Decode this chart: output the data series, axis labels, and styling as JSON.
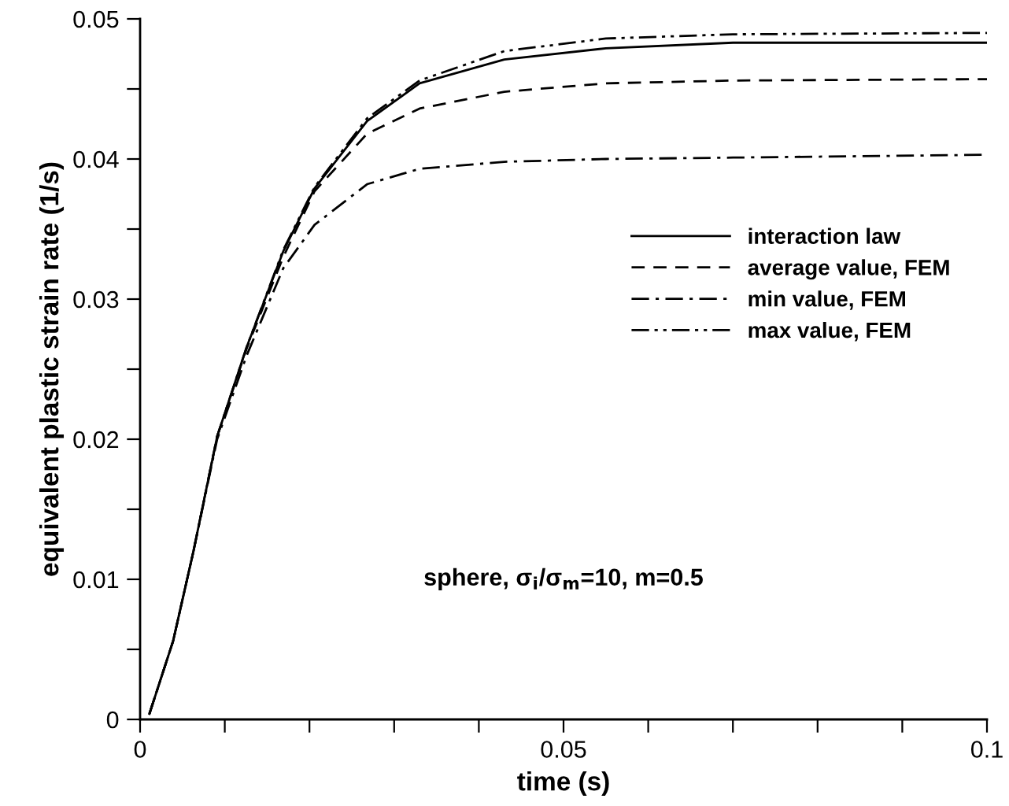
{
  "chart_data": {
    "type": "line",
    "xlabel": "time (s)",
    "ylabel": "equivalent plastic strain rate (1/s)",
    "xlim": [
      0,
      0.1
    ],
    "ylim": [
      0,
      0.05
    ],
    "xticks": [
      0,
      {
        "value": 0.01,
        "label": null
      },
      {
        "value": 0.02,
        "label": null
      },
      {
        "value": 0.03,
        "label": null
      },
      {
        "value": 0.04,
        "label": null
      },
      0.05,
      {
        "value": 0.06,
        "label": null
      },
      {
        "value": 0.07,
        "label": null
      },
      {
        "value": 0.08,
        "label": null
      },
      {
        "value": 0.09,
        "label": null
      },
      0.1
    ],
    "yticks": [
      0,
      {
        "value": 0.005,
        "label": null
      },
      0.01,
      {
        "value": 0.015,
        "label": null
      },
      0.02,
      {
        "value": 0.025,
        "label": null
      },
      0.03,
      {
        "value": 0.035,
        "label": null
      },
      0.04,
      {
        "value": 0.045,
        "label": null
      },
      0.05
    ],
    "x": [
      0.0011,
      0.0039,
      0.0063,
      0.0091,
      0.0126,
      0.0169,
      0.0206,
      0.0268,
      0.033,
      0.043,
      0.055,
      0.07,
      0.1
    ],
    "series": [
      {
        "name": "interaction law",
        "color": "#000000",
        "line_style": "solid",
        "values": [
          0.0004,
          0.0056,
          0.012,
          0.0202,
          0.0266,
          0.0334,
          0.0379,
          0.0427,
          0.0454,
          0.0471,
          0.0479,
          0.0483,
          0.0483
        ]
      },
      {
        "name": "average value, FEM",
        "color": "#000000",
        "line_style": "dashed",
        "values": [
          0.0004,
          0.0056,
          0.012,
          0.0202,
          0.0265,
          0.033,
          0.0377,
          0.0418,
          0.0436,
          0.0448,
          0.0454,
          0.0456,
          0.0457
        ]
      },
      {
        "name": "min value, FEM",
        "color": "#000000",
        "line_style": "dashdot",
        "values": [
          0.0004,
          0.0056,
          0.012,
          0.02,
          0.026,
          0.0322,
          0.0353,
          0.0382,
          0.0393,
          0.0398,
          0.04,
          0.0401,
          0.0403
        ]
      },
      {
        "name": "max value, FEM",
        "color": "#000000",
        "line_style": "dashdotdot",
        "values": [
          0.0004,
          0.0056,
          0.012,
          0.0202,
          0.0266,
          0.0335,
          0.038,
          0.0429,
          0.0456,
          0.0477,
          0.0486,
          0.0489,
          0.049
        ]
      }
    ],
    "legend": "right",
    "annotations": [
      "sphere, σ$_{i}$/σ$_{m}$=10, m=0.5"
    ]
  }
}
